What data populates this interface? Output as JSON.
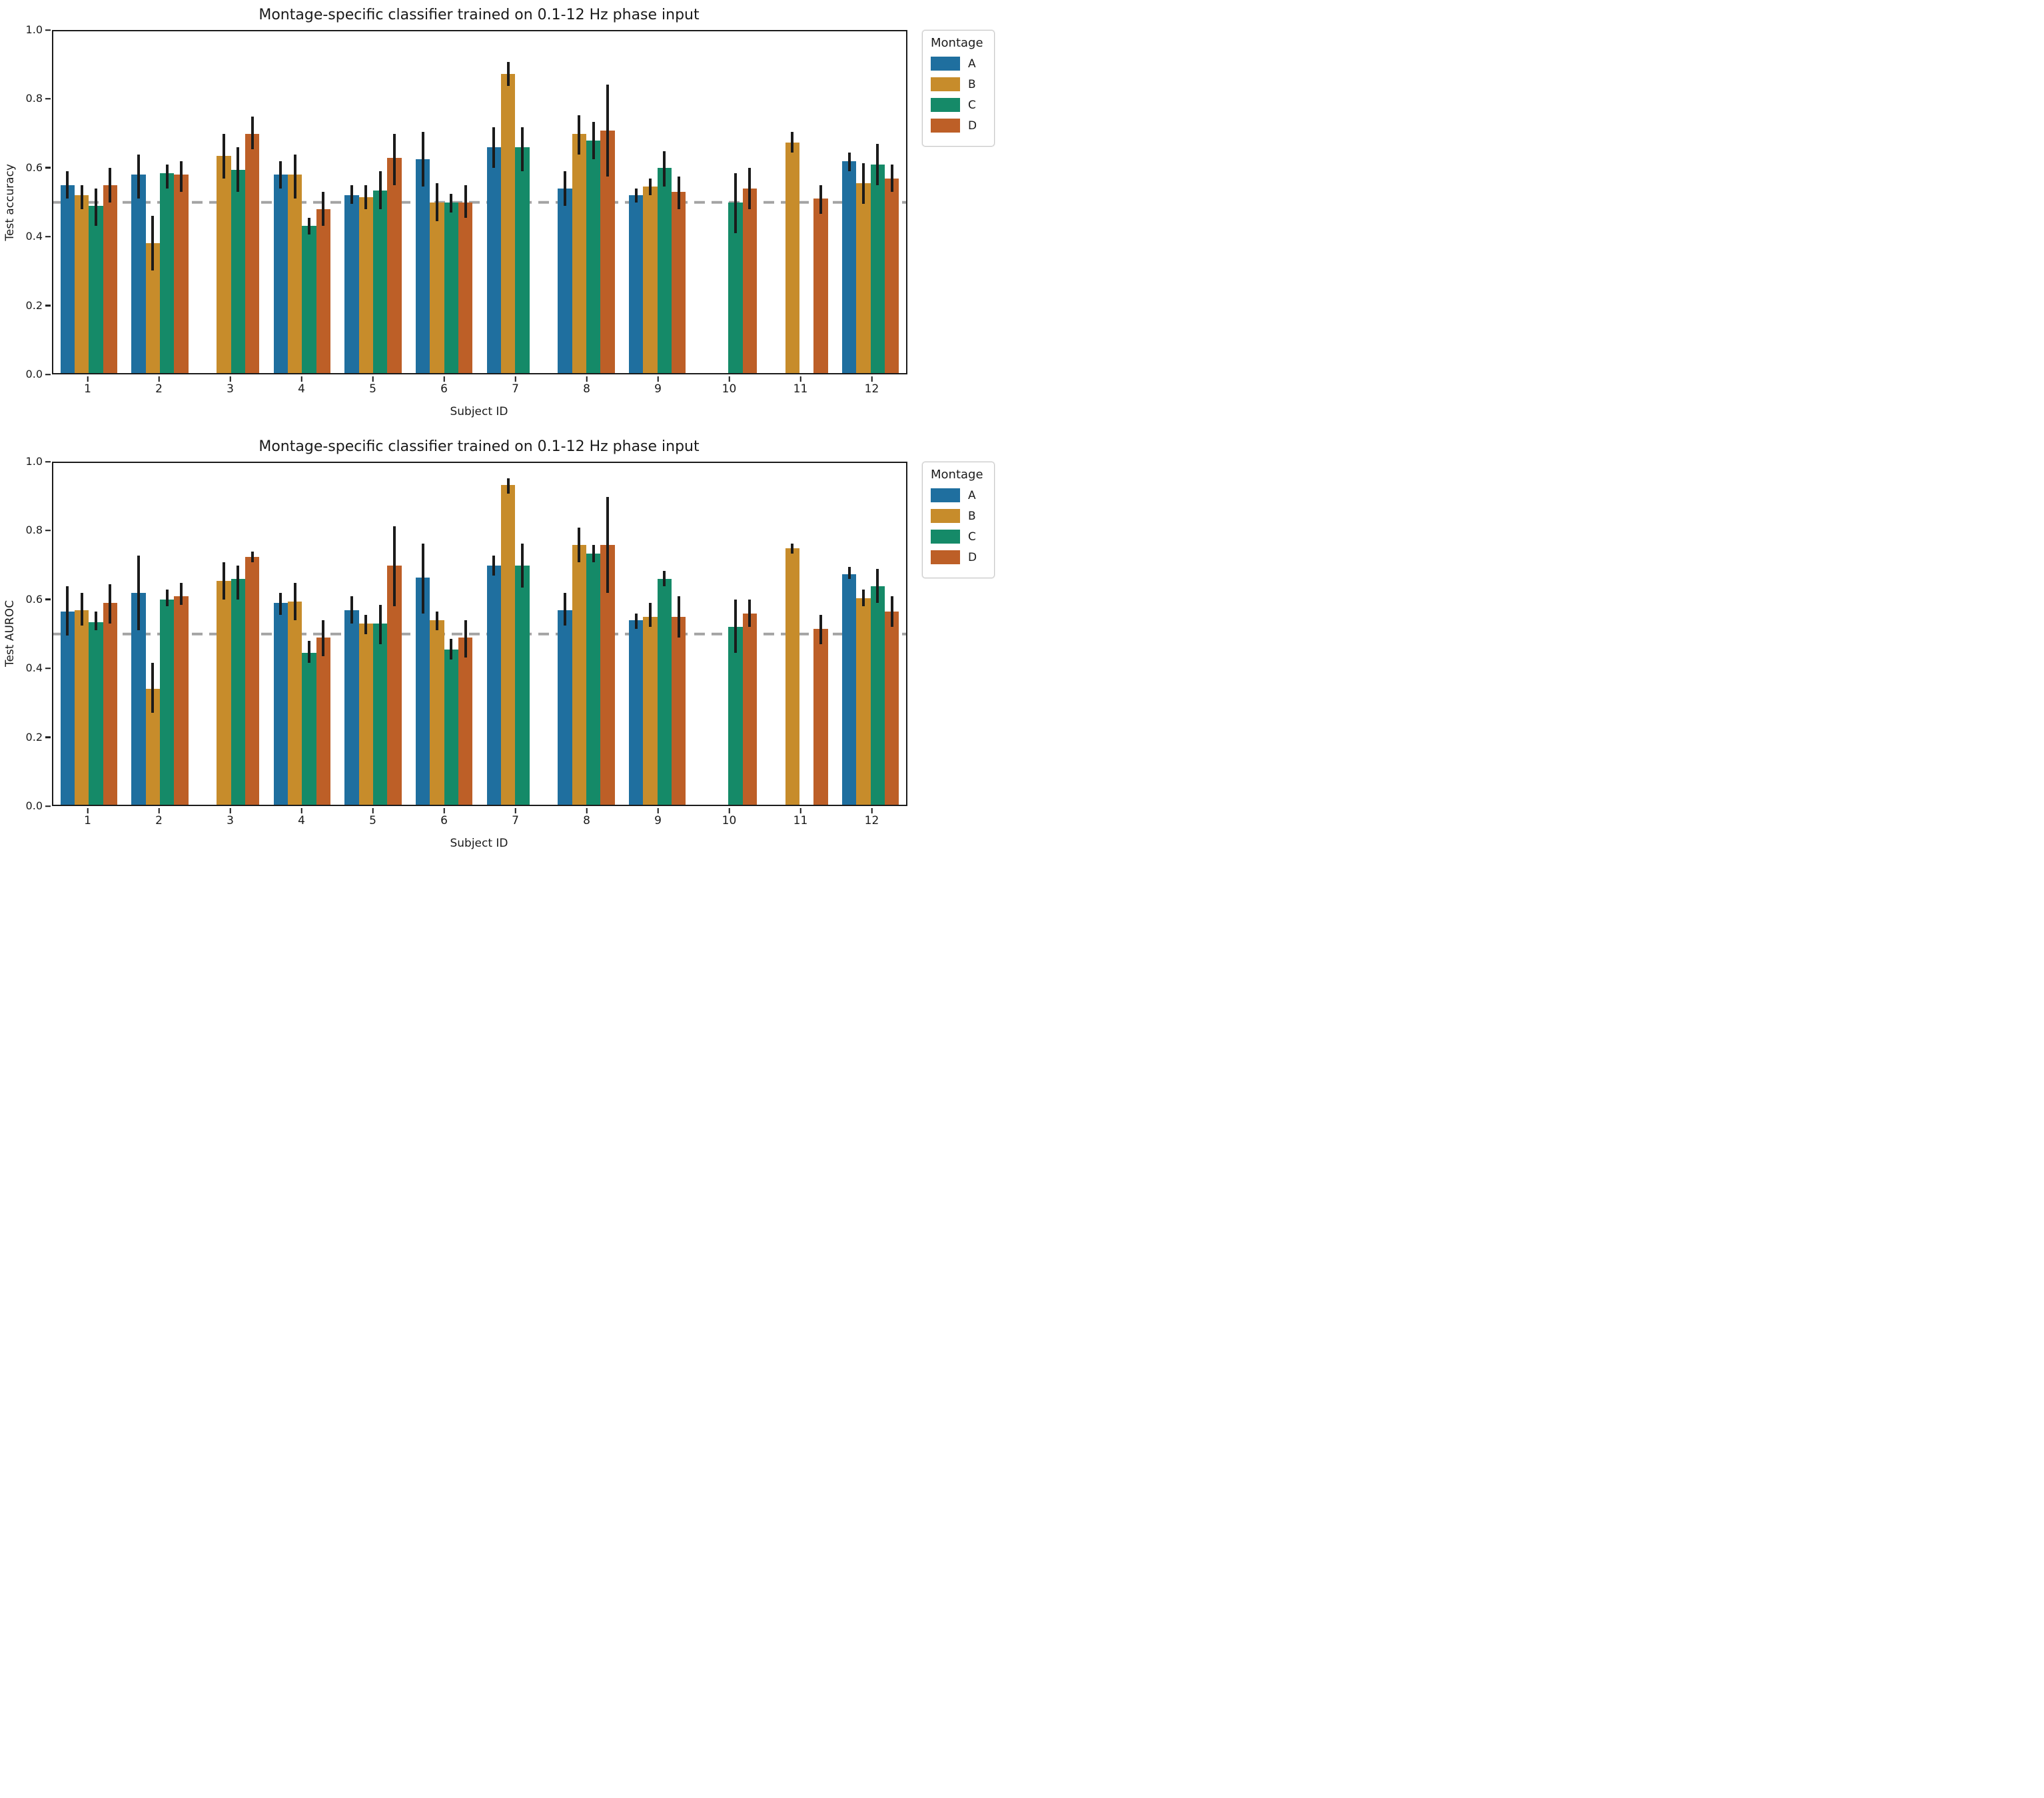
{
  "page": {
    "background": "#ffffff"
  },
  "palette": {
    "error_bar": "#1b1b1b",
    "chance_line": "#a3a3a3",
    "spine": "#1b1b1b"
  },
  "legend": {
    "title": "Montage",
    "entries": [
      {
        "label": "A",
        "color": "#1f6f9f"
      },
      {
        "label": "B",
        "color": "#c78c2b"
      },
      {
        "label": "C",
        "color": "#158a68"
      },
      {
        "label": "D",
        "color": "#bd5f27"
      }
    ]
  },
  "chart_data": [
    {
      "type": "bar",
      "title": "Montage-specific classifier trained on 0.1-12 Hz phase input",
      "xlabel": "Subject ID",
      "ylabel": "Test accuracy",
      "ylim": [
        0.0,
        1.0
      ],
      "yticks": [
        "0.0",
        "0.2",
        "0.4",
        "0.6",
        "0.8",
        "1.0"
      ],
      "grid": false,
      "legend_position": "upper right, outside axes",
      "chance_level": 0.5,
      "categories": [
        "1",
        "2",
        "3",
        "4",
        "5",
        "6",
        "7",
        "8",
        "9",
        "10",
        "11",
        "12"
      ],
      "series": [
        {
          "name": "A",
          "color": "#1f6f9f",
          "values": [
            0.55,
            0.58,
            null,
            0.58,
            0.52,
            0.625,
            0.66,
            0.54,
            0.52,
            null,
            null,
            0.62
          ],
          "err": [
            [
              0.51,
              0.59
            ],
            [
              0.51,
              0.64
            ],
            null,
            [
              0.54,
              0.62
            ],
            [
              0.495,
              0.55
            ],
            [
              0.545,
              0.705
            ],
            [
              0.6,
              0.72
            ],
            [
              0.49,
              0.59
            ],
            [
              0.5,
              0.54
            ],
            null,
            null,
            [
              0.59,
              0.645
            ]
          ]
        },
        {
          "name": "B",
          "color": "#c78c2b",
          "values": [
            0.52,
            0.38,
            0.635,
            0.58,
            0.515,
            0.5,
            0.875,
            0.7,
            0.545,
            null,
            0.675,
            0.555
          ],
          "err": [
            [
              0.48,
              0.55
            ],
            [
              0.3,
              0.46
            ],
            [
              0.57,
              0.7
            ],
            [
              0.51,
              0.64
            ],
            [
              0.48,
              0.55
            ],
            [
              0.445,
              0.555
            ],
            [
              0.84,
              0.91
            ],
            [
              0.64,
              0.755
            ],
            [
              0.52,
              0.57
            ],
            null,
            [
              0.645,
              0.705
            ],
            [
              0.495,
              0.615
            ]
          ]
        },
        {
          "name": "C",
          "color": "#158a68",
          "values": [
            0.49,
            0.585,
            0.595,
            0.43,
            0.535,
            0.5,
            0.66,
            0.68,
            0.6,
            0.5,
            null,
            0.61
          ],
          "err": [
            [
              0.43,
              0.54
            ],
            [
              0.54,
              0.61
            ],
            [
              0.53,
              0.66
            ],
            [
              0.405,
              0.455
            ],
            [
              0.48,
              0.59
            ],
            [
              0.47,
              0.525
            ],
            [
              0.59,
              0.72
            ],
            [
              0.625,
              0.735
            ],
            [
              0.545,
              0.65
            ],
            [
              0.41,
              0.585
            ],
            null,
            [
              0.55,
              0.67
            ]
          ]
        },
        {
          "name": "D",
          "color": "#bd5f27",
          "values": [
            0.55,
            0.58,
            0.7,
            0.48,
            0.63,
            0.5,
            null,
            0.71,
            0.53,
            0.54,
            0.51,
            0.57
          ],
          "err": [
            [
              0.5,
              0.6
            ],
            [
              0.53,
              0.62
            ],
            [
              0.655,
              0.75
            ],
            [
              0.43,
              0.53
            ],
            [
              0.55,
              0.7
            ],
            [
              0.455,
              0.55
            ],
            null,
            [
              0.575,
              0.845
            ],
            [
              0.48,
              0.575
            ],
            [
              0.48,
              0.6
            ],
            [
              0.465,
              0.55
            ],
            [
              0.53,
              0.61
            ]
          ]
        }
      ]
    },
    {
      "type": "bar",
      "title": "Montage-specific classifier trained on 0.1-12 Hz phase input",
      "xlabel": "Subject ID",
      "ylabel": "Test AUROC",
      "ylim": [
        0.0,
        1.0
      ],
      "yticks": [
        "0.0",
        "0.2",
        "0.4",
        "0.6",
        "0.8",
        "1.0"
      ],
      "grid": false,
      "legend_position": "upper right, outside axes",
      "chance_level": 0.5,
      "categories": [
        "1",
        "2",
        "3",
        "4",
        "5",
        "6",
        "7",
        "8",
        "9",
        "10",
        "11",
        "12"
      ],
      "series": [
        {
          "name": "A",
          "color": "#1f6f9f",
          "values": [
            0.565,
            0.62,
            null,
            0.59,
            0.57,
            0.665,
            0.7,
            0.57,
            0.54,
            null,
            null,
            0.675
          ],
          "err": [
            [
              0.495,
              0.64
            ],
            [
              0.51,
              0.73
            ],
            null,
            [
              0.555,
              0.62
            ],
            [
              0.53,
              0.61
            ],
            [
              0.56,
              0.765
            ],
            [
              0.67,
              0.73
            ],
            [
              0.525,
              0.62
            ],
            [
              0.515,
              0.56
            ],
            null,
            null,
            [
              0.66,
              0.695
            ]
          ]
        },
        {
          "name": "B",
          "color": "#c78c2b",
          "values": [
            0.57,
            0.34,
            0.655,
            0.595,
            0.53,
            0.54,
            0.935,
            0.76,
            0.55,
            null,
            0.75,
            0.605
          ],
          "err": [
            [
              0.525,
              0.62
            ],
            [
              0.27,
              0.415
            ],
            [
              0.6,
              0.71
            ],
            [
              0.54,
              0.65
            ],
            [
              0.5,
              0.555
            ],
            [
              0.51,
              0.565
            ],
            [
              0.91,
              0.955
            ],
            [
              0.71,
              0.81
            ],
            [
              0.52,
              0.59
            ],
            null,
            [
              0.735,
              0.765
            ],
            [
              0.58,
              0.63
            ]
          ]
        },
        {
          "name": "C",
          "color": "#158a68",
          "values": [
            0.535,
            0.6,
            0.66,
            0.445,
            0.53,
            0.455,
            0.7,
            0.735,
            0.66,
            0.52,
            null,
            0.64
          ],
          "err": [
            [
              0.51,
              0.565
            ],
            [
              0.58,
              0.63
            ],
            [
              0.6,
              0.7
            ],
            [
              0.415,
              0.48
            ],
            [
              0.47,
              0.585
            ],
            [
              0.425,
              0.485
            ],
            [
              0.635,
              0.765
            ],
            [
              0.71,
              0.76
            ],
            [
              0.64,
              0.685
            ],
            [
              0.445,
              0.6
            ],
            null,
            [
              0.59,
              0.69
            ]
          ]
        },
        {
          "name": "D",
          "color": "#bd5f27",
          "values": [
            0.59,
            0.61,
            0.725,
            0.49,
            0.7,
            0.49,
            null,
            0.76,
            0.55,
            0.56,
            0.515,
            0.565
          ],
          "err": [
            [
              0.53,
              0.645
            ],
            [
              0.585,
              0.65
            ],
            [
              0.71,
              0.74
            ],
            [
              0.435,
              0.54
            ],
            [
              0.58,
              0.815
            ],
            [
              0.43,
              0.54
            ],
            null,
            [
              0.62,
              0.9
            ],
            [
              0.49,
              0.61
            ],
            [
              0.52,
              0.6
            ],
            [
              0.47,
              0.555
            ],
            [
              0.52,
              0.61
            ]
          ]
        }
      ]
    }
  ]
}
